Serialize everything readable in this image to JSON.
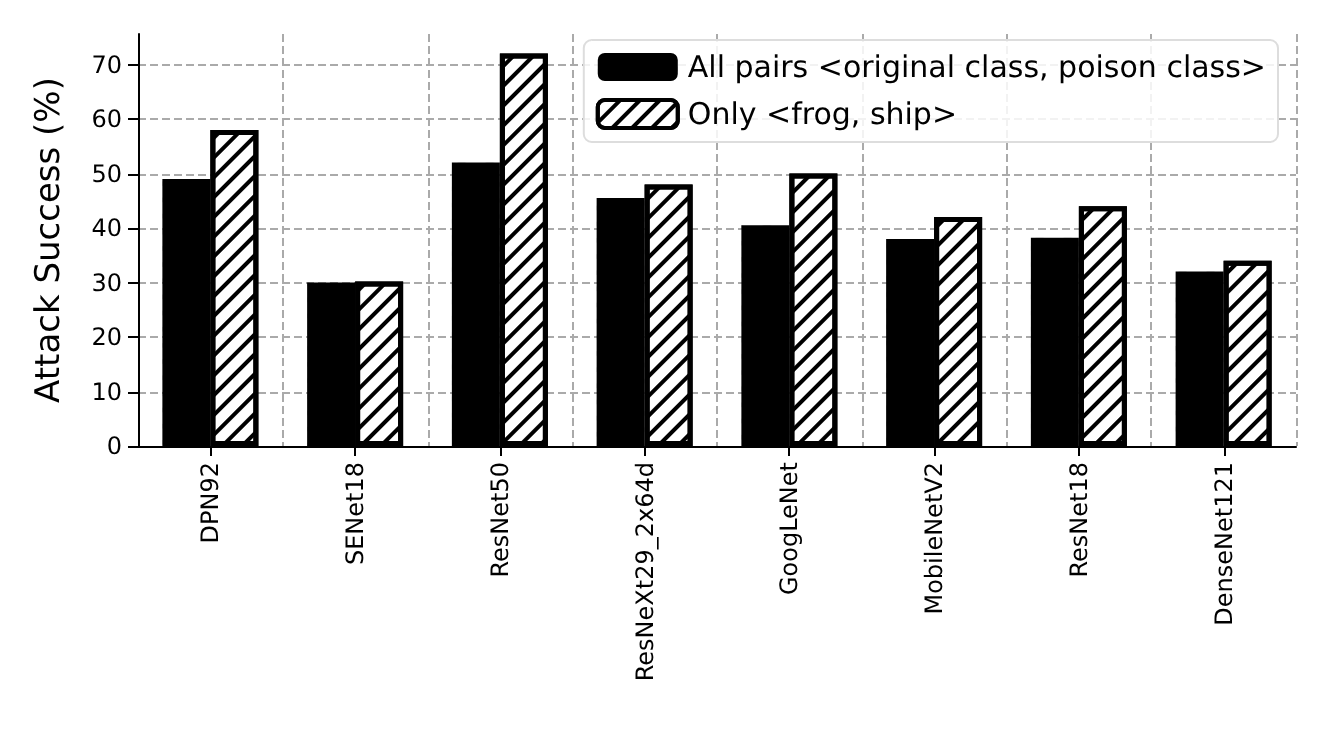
{
  "chart_data": {
    "type": "bar",
    "ylabel": "Attack Success (%)",
    "categories": [
      "DPN92",
      "SENet18",
      "ResNet50",
      "ResNeXt29_2x64d",
      "GoogLeNet",
      "MobileNetV2",
      "ResNet18",
      "DenseNet121"
    ],
    "series": [
      {
        "name": "All pairs <original class, poison class>",
        "color": "#000000",
        "values": [
          49,
          30,
          52,
          45.5,
          40.5,
          38,
          38.2,
          32
        ]
      },
      {
        "name": "Only <frog, ship>",
        "color": "#ffffff",
        "values": [
          58,
          30.2,
          72,
          48,
          50,
          42,
          44,
          34
        ]
      }
    ],
    "ylim": [
      0,
      75.6
    ],
    "yticks": [
      0,
      10,
      20,
      30,
      40,
      50,
      60,
      70
    ],
    "grid": true,
    "legend": "top right"
  }
}
